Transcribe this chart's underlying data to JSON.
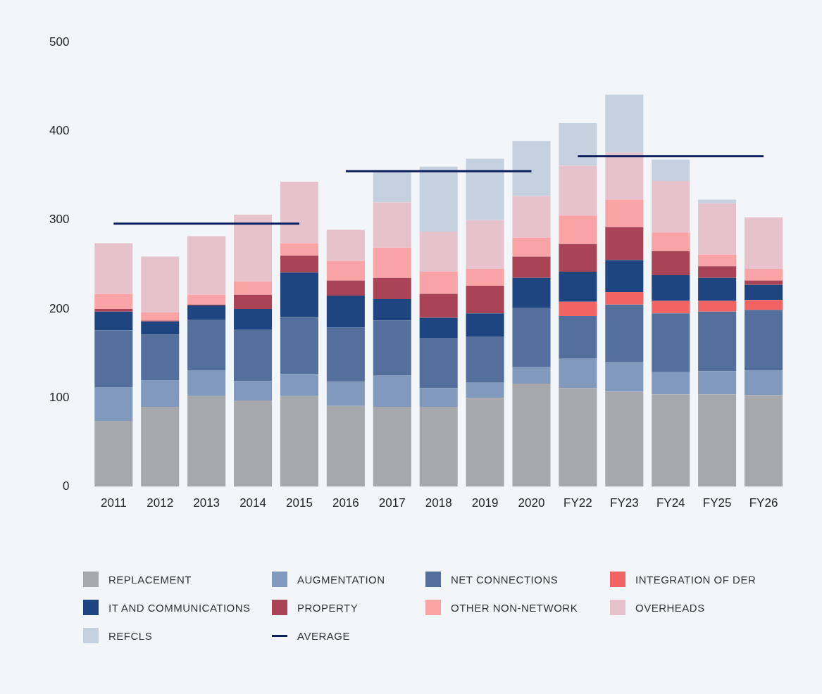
{
  "chart_data": {
    "type": "bar",
    "stacked": true,
    "categories": [
      "2011",
      "2012",
      "2013",
      "2014",
      "2015",
      "2016",
      "2017",
      "2018",
      "2019",
      "2020",
      "FY22",
      "FY23",
      "FY24",
      "FY25",
      "FY26"
    ],
    "ylim": [
      0,
      500
    ],
    "yticks": [
      0,
      100,
      200,
      300,
      400,
      500
    ],
    "grid": false,
    "legend": "bottom",
    "series": [
      {
        "name": "REPLACEMENT",
        "color": "#a6a8ab",
        "values": [
          74,
          90,
          102,
          97,
          102,
          91,
          90,
          90,
          100,
          116,
          111,
          107,
          104,
          104,
          103
        ]
      },
      {
        "name": "AUGMENTATION",
        "color": "#8099bd",
        "values": [
          38,
          30,
          29,
          22,
          25,
          27,
          35,
          21,
          17,
          19,
          33,
          33,
          25,
          26,
          28
        ]
      },
      {
        "name": "NET CONNECTIONS",
        "color": "#546f9c",
        "values": [
          64,
          51,
          57,
          58,
          64,
          61,
          62,
          56,
          52,
          66,
          48,
          65,
          66,
          67,
          68
        ]
      },
      {
        "name": "INTEGRATION OF DER",
        "color": "#f26363",
        "values": [
          0,
          0,
          0,
          0,
          0,
          0,
          0,
          0,
          0,
          0,
          16,
          14,
          14,
          12,
          11
        ]
      },
      {
        "name": "IT AND COMMUNICATIONS",
        "color": "#1f4580",
        "values": [
          21,
          15,
          16,
          23,
          50,
          36,
          24,
          23,
          26,
          34,
          34,
          36,
          29,
          26,
          17
        ]
      },
      {
        "name": "PROPERTY",
        "color": "#a94457",
        "values": [
          3,
          1,
          1,
          16,
          19,
          17,
          24,
          27,
          31,
          24,
          31,
          37,
          27,
          13,
          5
        ]
      },
      {
        "name": "OTHER NON-NETWORK",
        "color": "#f9a3a6",
        "values": [
          17,
          9,
          11,
          15,
          14,
          22,
          34,
          25,
          19,
          21,
          32,
          31,
          21,
          13,
          13
        ]
      },
      {
        "name": "OVERHEADS",
        "color": "#e6c3cc",
        "values": [
          57,
          63,
          66,
          75,
          69,
          35,
          51,
          45,
          55,
          47,
          56,
          53,
          58,
          58,
          58
        ]
      },
      {
        "name": "REFCLS",
        "color": "#c5d1df",
        "values": [
          0,
          0,
          0,
          0,
          0,
          0,
          36,
          73,
          69,
          62,
          48,
          65,
          24,
          4,
          0
        ]
      },
      {
        "name": "AVERAGE",
        "type": "line",
        "color": "#0d1f5c",
        "values": [
          296,
          296,
          296,
          296,
          296,
          null,
          null,
          null,
          null,
          null,
          null,
          null,
          null,
          null,
          null
        ]
      },
      {
        "type": "line",
        "color": "#0d1f5c",
        "values": [
          null,
          null,
          null,
          null,
          null,
          355,
          355,
          355,
          355,
          355,
          null,
          null,
          null,
          null,
          null
        ]
      },
      {
        "type": "line",
        "color": "#0d1f5c",
        "values": [
          null,
          null,
          null,
          null,
          null,
          null,
          null,
          null,
          null,
          null,
          372,
          372,
          372,
          372,
          372
        ]
      }
    ]
  }
}
